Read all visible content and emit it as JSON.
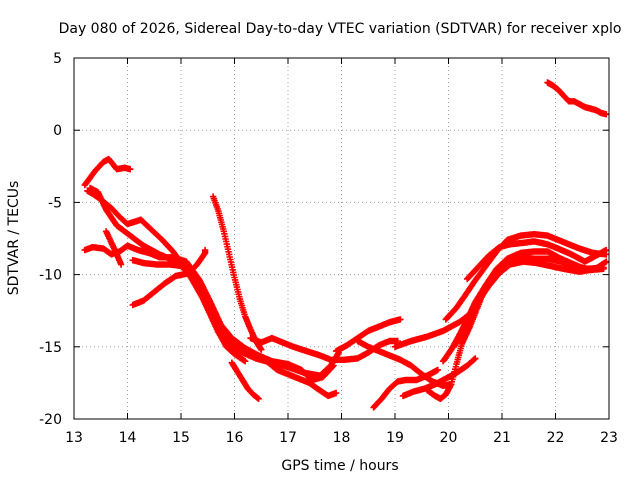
{
  "chart_data": {
    "type": "scatter",
    "title": "Day 080 of 2026, Sidereal Day-to-day VTEC variation (SDTVAR) for receiver xplo",
    "xlabel": "GPS time / hours",
    "ylabel": "SDTVAR / TECUs",
    "xlim": [
      13,
      23
    ],
    "ylim": [
      -20,
      5
    ],
    "xticks": [
      "13",
      "14",
      "15",
      "16",
      "17",
      "18",
      "19",
      "20",
      "21",
      "22",
      "23"
    ],
    "yticks": [
      "5",
      "0",
      "-5",
      "-10",
      "-15",
      "-20"
    ],
    "grid": true,
    "marker": "+",
    "marker_color": "#ff0000",
    "series": [
      {
        "name": "s1",
        "points": [
          [
            13.2,
            -3.8
          ],
          [
            13.3,
            -3.3
          ],
          [
            13.4,
            -2.8
          ],
          [
            13.55,
            -2.2
          ],
          [
            13.65,
            -2.0
          ],
          [
            13.8,
            -2.7
          ],
          [
            13.95,
            -2.6
          ],
          [
            14.05,
            -2.7
          ]
        ]
      },
      {
        "name": "s2",
        "points": [
          [
            13.25,
            -4.2
          ],
          [
            13.35,
            -4.4
          ],
          [
            13.5,
            -4.8
          ],
          [
            13.7,
            -5.4
          ],
          [
            13.85,
            -6.0
          ],
          [
            14.0,
            -6.5
          ],
          [
            14.25,
            -6.2
          ],
          [
            14.45,
            -6.9
          ],
          [
            14.65,
            -7.6
          ],
          [
            14.85,
            -8.4
          ],
          [
            15.0,
            -9.2
          ],
          [
            15.2,
            -10.3
          ],
          [
            15.4,
            -11.6
          ],
          [
            15.55,
            -12.8
          ],
          [
            15.7,
            -14.0
          ],
          [
            15.85,
            -15.0
          ],
          [
            16.0,
            -15.5
          ],
          [
            16.2,
            -16.0
          ]
        ]
      },
      {
        "name": "s3",
        "points": [
          [
            13.3,
            -4.0
          ],
          [
            13.45,
            -4.3
          ],
          [
            13.6,
            -5.5
          ],
          [
            13.8,
            -6.6
          ],
          [
            14.05,
            -7.3
          ],
          [
            14.3,
            -8.0
          ],
          [
            14.6,
            -8.6
          ],
          [
            14.85,
            -9.0
          ],
          [
            15.1,
            -9.6
          ],
          [
            15.3,
            -10.6
          ],
          [
            15.5,
            -12.1
          ],
          [
            15.7,
            -13.6
          ],
          [
            15.9,
            -14.9
          ],
          [
            16.15,
            -15.4
          ],
          [
            16.4,
            -15.8
          ],
          [
            16.7,
            -16.1
          ],
          [
            17.0,
            -16.4
          ],
          [
            17.3,
            -16.8
          ],
          [
            17.6,
            -17.0
          ],
          [
            17.8,
            -16.3
          ],
          [
            17.95,
            -15.4
          ]
        ]
      },
      {
        "name": "s4",
        "points": [
          [
            13.2,
            -8.3
          ],
          [
            13.35,
            -8.1
          ],
          [
            13.55,
            -8.2
          ],
          [
            13.7,
            -8.6
          ],
          [
            13.85,
            -8.4
          ],
          [
            14.0,
            -8.0
          ],
          [
            14.2,
            -8.3
          ],
          [
            14.4,
            -8.5
          ],
          [
            14.6,
            -8.8
          ],
          [
            14.85,
            -8.8
          ],
          [
            15.1,
            -9.1
          ],
          [
            15.35,
            -10.4
          ],
          [
            15.55,
            -11.9
          ],
          [
            15.75,
            -13.5
          ],
          [
            15.95,
            -14.4
          ],
          [
            16.2,
            -15.1
          ],
          [
            16.45,
            -15.6
          ],
          [
            16.7,
            -16.0
          ],
          [
            17.0,
            -16.2
          ],
          [
            17.25,
            -16.6
          ],
          [
            17.45,
            -17.3
          ],
          [
            17.65,
            -17.1
          ],
          [
            17.85,
            -16.3
          ]
        ]
      },
      {
        "name": "s5",
        "points": [
          [
            13.6,
            -7.0
          ],
          [
            13.7,
            -7.8
          ],
          [
            13.8,
            -8.6
          ],
          [
            13.88,
            -9.3
          ]
        ]
      },
      {
        "name": "s6",
        "points": [
          [
            14.1,
            -12.1
          ],
          [
            14.3,
            -11.8
          ],
          [
            14.5,
            -11.2
          ],
          [
            14.7,
            -10.6
          ],
          [
            14.9,
            -10.1
          ],
          [
            15.15,
            -9.9
          ],
          [
            15.3,
            -9.3
          ],
          [
            15.45,
            -8.5
          ],
          [
            15.45,
            -8.3
          ]
        ]
      },
      {
        "name": "s7",
        "points": [
          [
            14.1,
            -9.0
          ],
          [
            14.3,
            -9.2
          ],
          [
            14.55,
            -9.3
          ],
          [
            14.8,
            -9.3
          ],
          [
            15.0,
            -9.4
          ],
          [
            15.2,
            -10.1
          ],
          [
            15.4,
            -11.1
          ],
          [
            15.6,
            -12.4
          ],
          [
            15.75,
            -13.6
          ],
          [
            15.9,
            -14.6
          ],
          [
            16.1,
            -15.2
          ],
          [
            16.4,
            -15.8
          ],
          [
            16.6,
            -16.0
          ],
          [
            16.8,
            -16.6
          ],
          [
            17.0,
            -16.9
          ],
          [
            17.2,
            -17.2
          ],
          [
            17.4,
            -17.5
          ],
          [
            17.55,
            -17.9
          ],
          [
            17.75,
            -18.4
          ],
          [
            17.9,
            -18.2
          ]
        ]
      },
      {
        "name": "s8",
        "points": [
          [
            15.6,
            -4.6
          ],
          [
            15.7,
            -5.6
          ],
          [
            15.8,
            -7.0
          ],
          [
            15.9,
            -8.6
          ],
          [
            16.0,
            -10.2
          ],
          [
            16.1,
            -11.7
          ],
          [
            16.2,
            -12.9
          ],
          [
            16.3,
            -13.8
          ],
          [
            16.4,
            -14.6
          ],
          [
            16.5,
            -15.2
          ]
        ]
      },
      {
        "name": "s9",
        "points": [
          [
            15.95,
            -16.1
          ],
          [
            16.05,
            -16.7
          ],
          [
            16.15,
            -17.3
          ],
          [
            16.25,
            -17.9
          ],
          [
            16.35,
            -18.3
          ],
          [
            16.45,
            -18.6
          ]
        ]
      },
      {
        "name": "s10",
        "points": [
          [
            16.3,
            -14.4
          ],
          [
            16.5,
            -14.7
          ],
          [
            16.7,
            -14.4
          ],
          [
            16.9,
            -14.7
          ],
          [
            17.1,
            -15.0
          ],
          [
            17.35,
            -15.3
          ],
          [
            17.6,
            -15.6
          ],
          [
            17.8,
            -15.9
          ],
          [
            18.05,
            -15.9
          ],
          [
            18.3,
            -15.8
          ],
          [
            18.5,
            -15.4
          ],
          [
            18.7,
            -14.9
          ],
          [
            18.9,
            -14.6
          ],
          [
            19.05,
            -14.6
          ]
        ]
      },
      {
        "name": "s11",
        "points": [
          [
            17.9,
            -15.3
          ],
          [
            18.1,
            -14.9
          ],
          [
            18.3,
            -14.4
          ],
          [
            18.5,
            -13.9
          ],
          [
            18.7,
            -13.6
          ],
          [
            18.9,
            -13.3
          ],
          [
            19.1,
            -13.1
          ]
        ]
      },
      {
        "name": "s12",
        "points": [
          [
            18.3,
            -14.6
          ],
          [
            18.5,
            -15.0
          ],
          [
            18.7,
            -15.3
          ],
          [
            18.9,
            -15.6
          ],
          [
            19.1,
            -15.9
          ],
          [
            19.3,
            -16.3
          ],
          [
            19.5,
            -16.9
          ],
          [
            19.7,
            -17.4
          ],
          [
            19.9,
            -17.7
          ],
          [
            20.05,
            -17.6
          ]
        ]
      },
      {
        "name": "s13",
        "points": [
          [
            18.6,
            -19.2
          ],
          [
            18.75,
            -18.6
          ],
          [
            18.9,
            -17.9
          ],
          [
            19.05,
            -17.4
          ],
          [
            19.2,
            -17.3
          ],
          [
            19.4,
            -17.3
          ],
          [
            19.6,
            -17.0
          ],
          [
            19.8,
            -16.6
          ]
        ]
      },
      {
        "name": "s14",
        "points": [
          [
            19.15,
            -18.4
          ],
          [
            19.35,
            -18.1
          ],
          [
            19.55,
            -17.9
          ],
          [
            19.75,
            -17.6
          ],
          [
            19.95,
            -17.2
          ],
          [
            20.15,
            -16.8
          ],
          [
            20.35,
            -16.3
          ],
          [
            20.5,
            -15.8
          ]
        ]
      },
      {
        "name": "s15",
        "points": [
          [
            19.0,
            -15.0
          ],
          [
            19.3,
            -14.6
          ],
          [
            19.6,
            -14.3
          ],
          [
            19.9,
            -13.9
          ],
          [
            20.2,
            -13.3
          ],
          [
            20.45,
            -12.6
          ]
        ]
      },
      {
        "name": "s16",
        "points": [
          [
            19.6,
            -18.0
          ],
          [
            19.75,
            -18.4
          ],
          [
            19.85,
            -18.6
          ],
          [
            19.95,
            -18.3
          ],
          [
            20.05,
            -17.6
          ],
          [
            20.15,
            -16.2
          ],
          [
            20.25,
            -14.8
          ],
          [
            20.4,
            -13.6
          ],
          [
            20.55,
            -12.2
          ],
          [
            20.7,
            -10.8
          ],
          [
            20.9,
            -9.8
          ],
          [
            21.1,
            -9.1
          ],
          [
            21.35,
            -8.8
          ],
          [
            21.6,
            -8.9
          ],
          [
            21.85,
            -8.9
          ],
          [
            22.1,
            -9.1
          ],
          [
            22.35,
            -9.4
          ],
          [
            22.6,
            -9.6
          ],
          [
            22.9,
            -9.5
          ]
        ]
      },
      {
        "name": "s17",
        "points": [
          [
            19.9,
            -16.0
          ],
          [
            20.05,
            -15.2
          ],
          [
            20.2,
            -14.2
          ],
          [
            20.35,
            -13.1
          ],
          [
            20.5,
            -11.9
          ],
          [
            20.7,
            -10.7
          ],
          [
            20.9,
            -9.6
          ],
          [
            21.1,
            -8.9
          ],
          [
            21.35,
            -8.5
          ],
          [
            21.6,
            -8.4
          ],
          [
            21.85,
            -8.4
          ],
          [
            22.1,
            -8.9
          ],
          [
            22.35,
            -9.3
          ],
          [
            22.6,
            -9.7
          ],
          [
            22.9,
            -9.6
          ]
        ]
      },
      {
        "name": "s18",
        "points": [
          [
            20.1,
            -15.0
          ],
          [
            20.25,
            -14.0
          ],
          [
            20.4,
            -13.0
          ],
          [
            20.55,
            -11.9
          ],
          [
            20.75,
            -10.8
          ],
          [
            20.95,
            -9.9
          ],
          [
            21.15,
            -9.3
          ],
          [
            21.4,
            -9.1
          ],
          [
            21.65,
            -9.2
          ],
          [
            21.9,
            -9.4
          ],
          [
            22.15,
            -9.6
          ],
          [
            22.45,
            -9.8
          ],
          [
            22.75,
            -9.6
          ],
          [
            22.95,
            -9.1
          ]
        ]
      },
      {
        "name": "s19",
        "points": [
          [
            19.95,
            -13.1
          ],
          [
            20.15,
            -12.3
          ],
          [
            20.3,
            -11.5
          ],
          [
            20.5,
            -10.4
          ],
          [
            20.7,
            -9.4
          ],
          [
            20.9,
            -8.4
          ],
          [
            21.1,
            -7.6
          ],
          [
            21.35,
            -7.3
          ],
          [
            21.6,
            -7.2
          ],
          [
            21.85,
            -7.3
          ],
          [
            22.05,
            -7.6
          ],
          [
            22.25,
            -7.9
          ],
          [
            22.45,
            -8.2
          ],
          [
            22.7,
            -8.5
          ],
          [
            22.95,
            -8.6
          ]
        ]
      },
      {
        "name": "s20",
        "points": [
          [
            20.35,
            -10.3
          ],
          [
            20.55,
            -9.5
          ],
          [
            20.75,
            -8.7
          ],
          [
            20.95,
            -8.1
          ],
          [
            21.15,
            -7.9
          ],
          [
            21.4,
            -7.8
          ],
          [
            21.6,
            -7.7
          ],
          [
            21.85,
            -7.9
          ],
          [
            22.05,
            -8.2
          ],
          [
            22.3,
            -8.6
          ],
          [
            22.55,
            -9.1
          ],
          [
            22.8,
            -8.6
          ],
          [
            22.95,
            -8.3
          ]
        ]
      },
      {
        "name": "s21",
        "points": [
          [
            21.85,
            3.3
          ],
          [
            21.95,
            3.1
          ],
          [
            22.05,
            2.8
          ],
          [
            22.15,
            2.4
          ],
          [
            22.25,
            2.0
          ],
          [
            22.35,
            2.0
          ],
          [
            22.45,
            1.8
          ],
          [
            22.55,
            1.6
          ],
          [
            22.65,
            1.5
          ],
          [
            22.75,
            1.4
          ],
          [
            22.85,
            1.2
          ],
          [
            22.95,
            1.1
          ]
        ]
      }
    ]
  }
}
